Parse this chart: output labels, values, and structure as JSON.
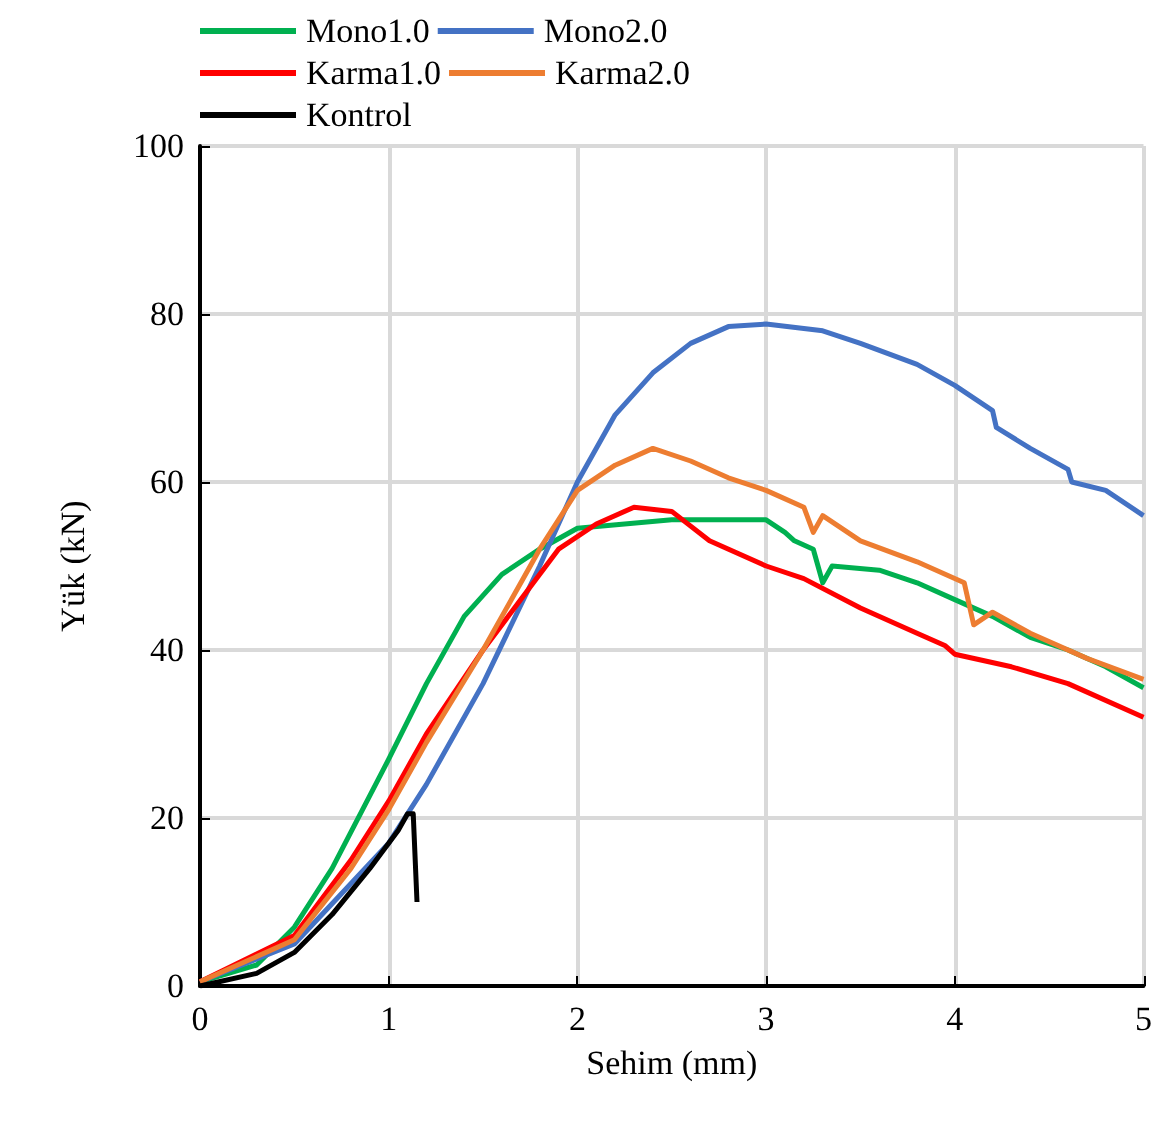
{
  "chart_data": {
    "type": "line",
    "xlabel": "Sehim (mm)",
    "ylabel": "Yük (kN)",
    "xlim": [
      0,
      5
    ],
    "xticks": [
      0,
      1,
      2,
      3,
      4,
      5
    ],
    "ylim": [
      0,
      100
    ],
    "yticks": [
      0,
      20,
      40,
      60,
      80,
      100
    ],
    "grid": true,
    "legend": "top",
    "marker": "none",
    "line_style": "solid",
    "series": [
      {
        "name": "Mono1.0",
        "color": "#00b050",
        "x": [
          0,
          0.3,
          0.5,
          0.7,
          1.0,
          1.2,
          1.4,
          1.6,
          1.8,
          2.0,
          2.5,
          3.0,
          3.1,
          3.15,
          3.25,
          3.3,
          3.35,
          3.6,
          3.8,
          4.0,
          4.2,
          4.4,
          4.6,
          4.8,
          5.0
        ],
        "values": [
          0.5,
          2.5,
          7,
          14,
          27,
          36,
          44,
          49,
          52,
          54.5,
          55.5,
          55.5,
          54,
          53,
          52,
          48,
          50,
          49.5,
          48,
          46,
          44,
          41.5,
          40,
          38,
          35.5
        ]
      },
      {
        "name": "Mono2.0",
        "color": "#4472c4",
        "x": [
          0,
          0.5,
          1.0,
          1.2,
          1.5,
          1.8,
          2.0,
          2.2,
          2.4,
          2.6,
          2.8,
          3.0,
          3.3,
          3.5,
          3.8,
          4.0,
          4.2,
          4.22,
          4.4,
          4.6,
          4.62,
          4.8,
          5.0
        ],
        "values": [
          0.5,
          5,
          17,
          24,
          36,
          50,
          60,
          68,
          73,
          76.5,
          78.5,
          78.8,
          78,
          76.5,
          74,
          71.5,
          68.5,
          66.5,
          64,
          61.5,
          60,
          59,
          56
        ]
      },
      {
        "name": "Karma1.0",
        "color": "#ff0000",
        "x": [
          0,
          0.5,
          0.8,
          1.0,
          1.2,
          1.5,
          1.7,
          1.9,
          2.1,
          2.3,
          2.5,
          2.7,
          3.0,
          3.2,
          3.5,
          3.8,
          3.95,
          4.0,
          4.3,
          4.6,
          5.0
        ],
        "values": [
          0.5,
          6,
          15,
          22,
          30,
          40,
          46,
          52,
          55,
          57,
          56.5,
          53,
          50,
          48.5,
          45,
          42,
          40.5,
          39.5,
          38,
          36,
          32
        ]
      },
      {
        "name": "Karma2.0",
        "color": "#ed7d31",
        "x": [
          0,
          0.5,
          0.8,
          1.0,
          1.2,
          1.5,
          1.8,
          2.0,
          2.2,
          2.4,
          2.6,
          2.8,
          3.0,
          3.2,
          3.25,
          3.3,
          3.5,
          3.8,
          4.05,
          4.1,
          4.2,
          4.4,
          4.7,
          5.0
        ],
        "values": [
          0.5,
          5.5,
          14,
          21,
          29,
          40,
          52,
          59,
          62,
          64,
          62.5,
          60.5,
          59,
          57,
          54,
          56,
          53,
          50.5,
          48,
          43,
          44.5,
          42,
          39,
          36.5
        ]
      },
      {
        "name": "Kontrol",
        "color": "#000000",
        "x": [
          0,
          0.3,
          0.5,
          0.7,
          0.9,
          1.05,
          1.1,
          1.13,
          1.15
        ],
        "values": [
          0,
          1.5,
          4,
          8.5,
          14,
          18.5,
          20.5,
          20.5,
          10
        ]
      }
    ]
  }
}
